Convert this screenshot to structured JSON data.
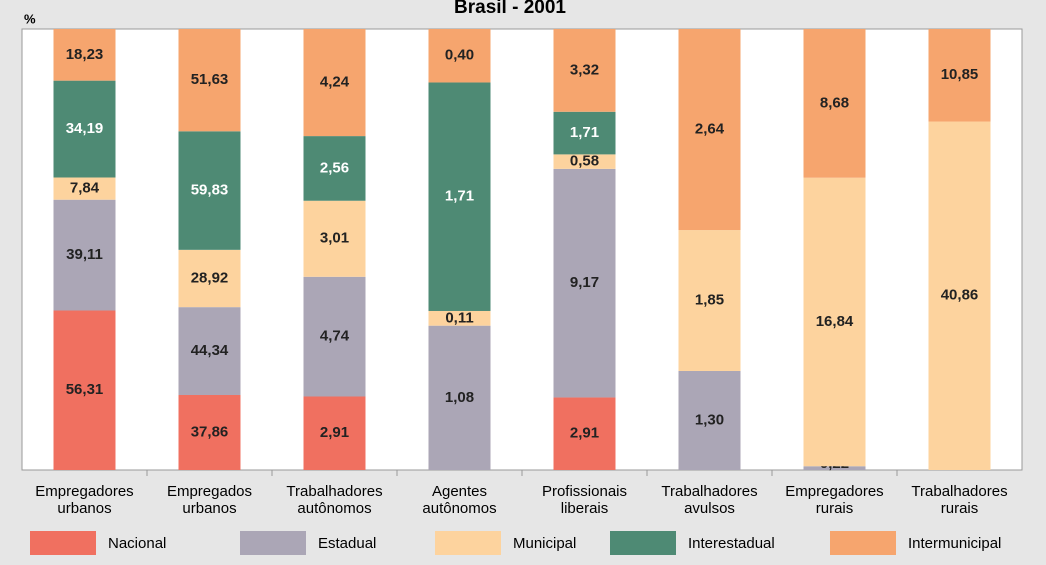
{
  "chart_data": {
    "type": "stacked_percent",
    "title": "Brasil - 2001",
    "y_label": "%",
    "categories": [
      "Empregadores urbanos",
      "Empregados urbanos",
      "Trabalhadores autônomos",
      "Agentes autônomos",
      "Profissionais liberais",
      "Trabalhadores avulsos",
      "Empregadores rurais",
      "Trabalhadores rurais"
    ],
    "series": [
      {
        "name": "Nacional",
        "color": "#f07060",
        "values": [
          56.31,
          37.86,
          2.91,
          null,
          2.91,
          null,
          null,
          null
        ],
        "value_labels": [
          "56,31",
          "37,86",
          "2,91",
          null,
          "2,91",
          null,
          null,
          null
        ]
      },
      {
        "name": "Estadual",
        "color": "#aba6b6",
        "values": [
          39.11,
          44.34,
          4.74,
          1.08,
          9.17,
          1.3,
          0.22,
          null
        ],
        "value_labels": [
          "39,11",
          "44,34",
          "4,74",
          "1,08",
          "9,17",
          "1,30",
          "0,22",
          null
        ]
      },
      {
        "name": "Municipal",
        "color": "#fdd39e",
        "values": [
          7.84,
          28.92,
          3.01,
          0.11,
          0.58,
          1.85,
          16.84,
          40.86
        ],
        "value_labels": [
          "7,84",
          "28,92",
          "3,01",
          "0,11",
          "0,58",
          "1,85",
          "16,84",
          "40,86"
        ]
      },
      {
        "name": "Interestadual",
        "color": "#4e8a74",
        "values": [
          34.19,
          59.83,
          2.56,
          1.71,
          1.71,
          null,
          null,
          null
        ],
        "value_labels": [
          "34,19",
          "59,83",
          "2,56",
          "1,71",
          "1,71",
          null,
          null,
          null
        ]
      },
      {
        "name": "Intermunicipal",
        "color": "#f6a56e",
        "values": [
          18.23,
          51.63,
          4.24,
          0.4,
          3.32,
          2.64,
          8.68,
          10.85
        ],
        "value_labels": [
          "18,23",
          "51,63",
          "4,24",
          "0,40",
          "3,32",
          "2,64",
          "8,68",
          "10,85"
        ]
      }
    ]
  }
}
